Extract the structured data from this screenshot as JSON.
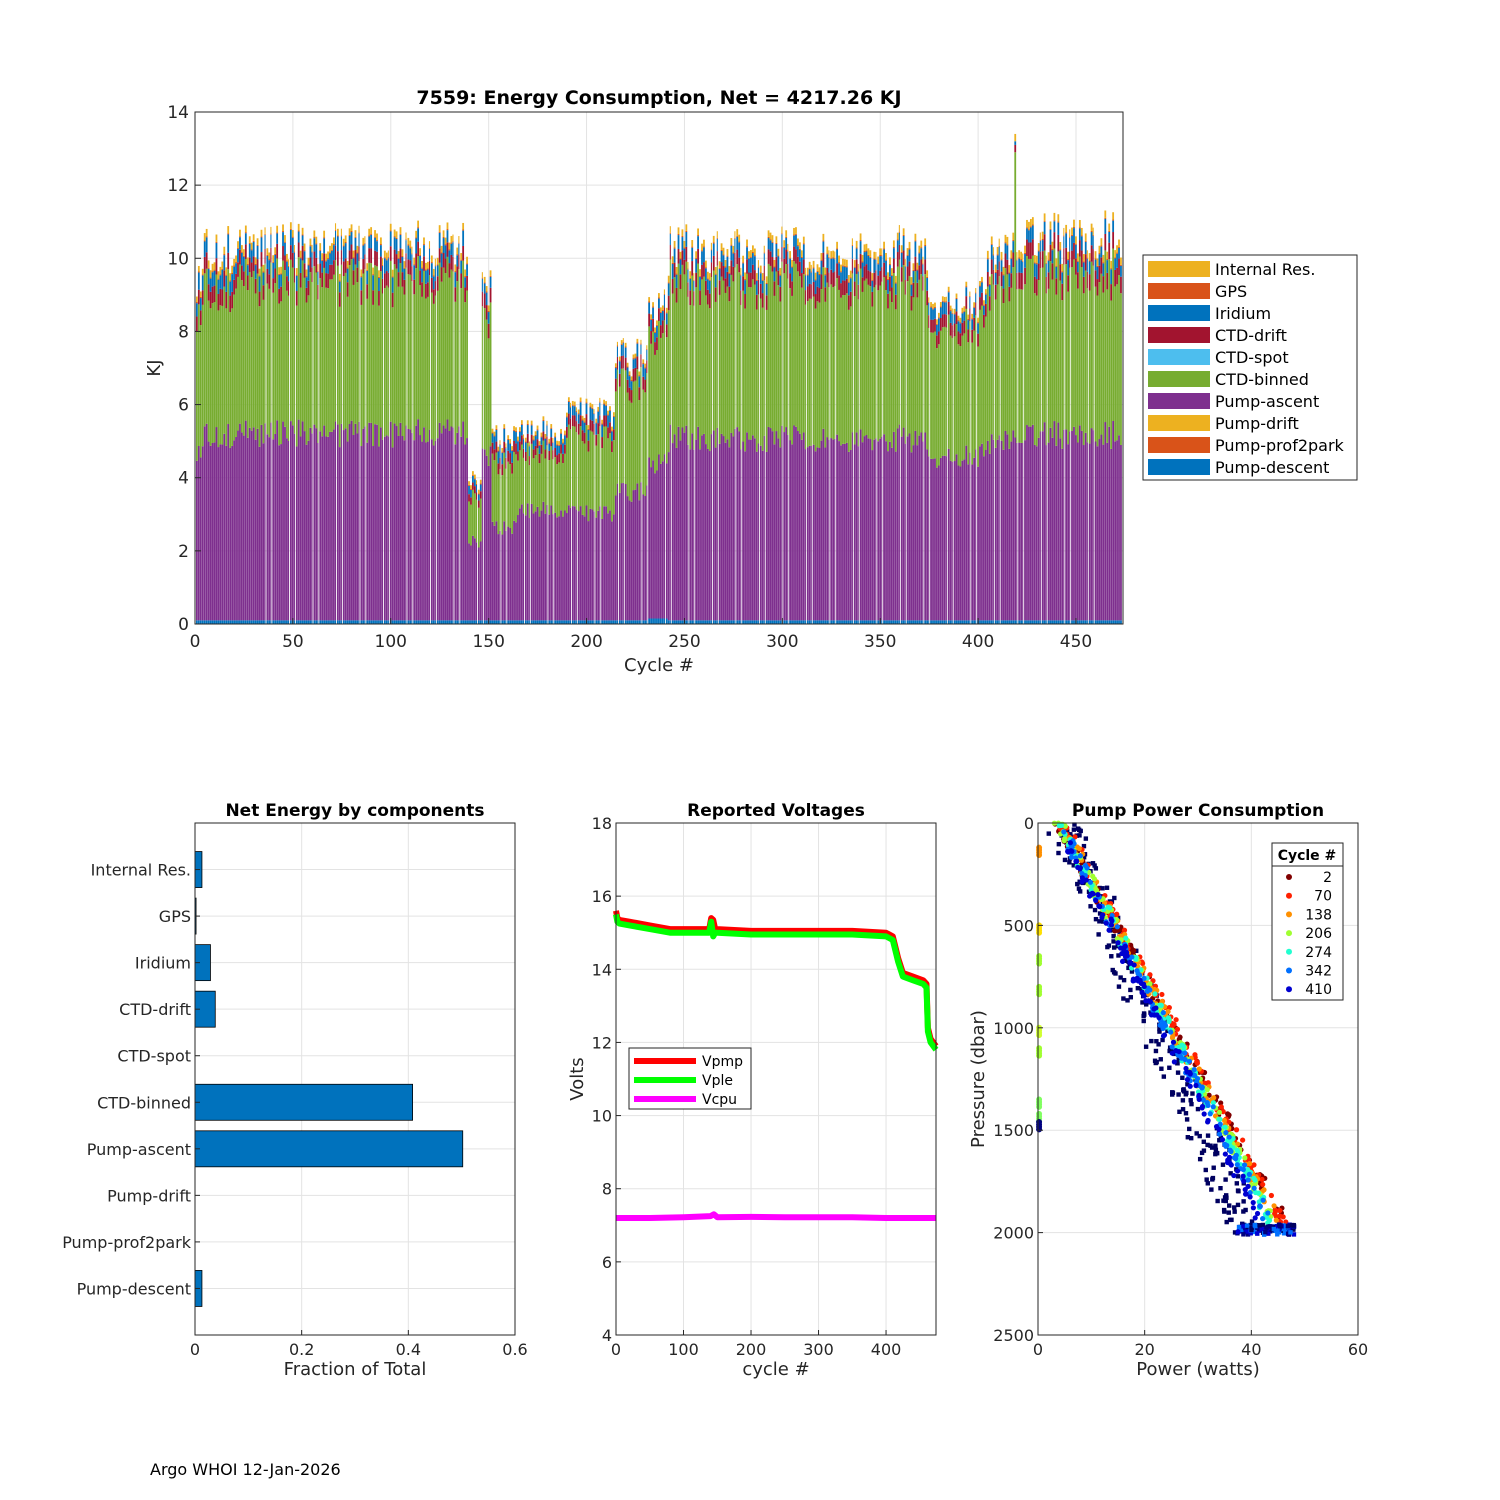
{
  "footer": "Argo WHOI 12-Jan-2026",
  "colors": {
    "internal_res": "#EDB120",
    "gps": "#D95319",
    "iridium": "#0072BD",
    "ctd_drift": "#A2142F",
    "ctd_spot": "#4DBEEE",
    "ctd_binned": "#77AC30",
    "pump_ascent": "#7E2F8E",
    "pump_drift": "#EDB120",
    "pump_prof2park": "#D95319",
    "pump_descent": "#0072BD",
    "vpmp": "#FF0000",
    "vple": "#00FF00",
    "vcpu": "#FF00FF"
  },
  "chart_data": [
    {
      "id": "energy",
      "type": "bar",
      "stacked": true,
      "title": "7559: Energy Consumption,  Net = 4217.26 KJ",
      "xlabel": "Cycle #",
      "ylabel": "KJ",
      "xlim": [
        0,
        474
      ],
      "ylim": [
        0,
        14
      ],
      "xticks": [
        "0",
        "50",
        "100",
        "150",
        "200",
        "250",
        "300",
        "350",
        "400",
        "450"
      ],
      "yticks": [
        "0",
        "2",
        "4",
        "6",
        "8",
        "10",
        "12",
        "14"
      ],
      "legend": [
        "Internal Res.",
        "GPS",
        "Iridium",
        "CTD-drift",
        "CTD-spot",
        "CTD-binned",
        "Pump-ascent",
        "Pump-drift",
        "Pump-prof2park",
        "Pump-descent"
      ],
      "legend_location": "east-outside",
      "segments": [
        {
          "from": 0,
          "to": 5,
          "descent": 0.1,
          "ascent": 4.8,
          "binned": 3.9,
          "drift": 0.4,
          "iridium": 0.4,
          "internal": 0.15
        },
        {
          "from": 5,
          "to": 20,
          "descent": 0.1,
          "ascent": 5.2,
          "binned": 4.1,
          "drift": 0.45,
          "iridium": 0.45,
          "internal": 0.2
        },
        {
          "from": 20,
          "to": 140,
          "descent": 0.1,
          "ascent": 5.25,
          "binned": 4.25,
          "drift": 0.4,
          "iridium": 0.35,
          "internal": 0.18
        },
        {
          "from": 140,
          "to": 147,
          "descent": 0.1,
          "ascent": 2.2,
          "binned": 1.2,
          "drift": 0.2,
          "iridium": 0.2,
          "internal": 0.1
        },
        {
          "from": 147,
          "to": 152,
          "descent": 0.1,
          "ascent": 4.6,
          "binned": 3.8,
          "drift": 0.4,
          "iridium": 0.3,
          "internal": 0.15
        },
        {
          "from": 152,
          "to": 165,
          "descent": 0.1,
          "ascent": 2.6,
          "binned": 1.8,
          "drift": 0.3,
          "iridium": 0.3,
          "internal": 0.1
        },
        {
          "from": 165,
          "to": 190,
          "descent": 0.1,
          "ascent": 3.1,
          "binned": 1.6,
          "drift": 0.25,
          "iridium": 0.25,
          "internal": 0.1
        },
        {
          "from": 190,
          "to": 215,
          "descent": 0.1,
          "ascent": 3.0,
          "binned": 2.1,
          "drift": 0.3,
          "iridium": 0.3,
          "internal": 0.1
        },
        {
          "from": 215,
          "to": 232,
          "descent": 0.1,
          "ascent": 3.6,
          "binned": 3.0,
          "drift": 0.35,
          "iridium": 0.3,
          "internal": 0.1
        },
        {
          "from": 232,
          "to": 242,
          "descent": 0.15,
          "ascent": 4.3,
          "binned": 3.5,
          "drift": 0.35,
          "iridium": 0.3,
          "internal": 0.12
        },
        {
          "from": 242,
          "to": 375,
          "descent": 0.1,
          "ascent": 5.1,
          "binned": 4.3,
          "drift": 0.4,
          "iridium": 0.35,
          "internal": 0.18
        },
        {
          "from": 375,
          "to": 405,
          "descent": 0.1,
          "ascent": 4.6,
          "binned": 3.6,
          "drift": 0.35,
          "iridium": 0.3,
          "internal": 0.12
        },
        {
          "from": 405,
          "to": 420,
          "descent": 0.1,
          "ascent": 5.0,
          "binned": 4.3,
          "drift": 0.4,
          "iridium": 0.35,
          "internal": 0.2
        },
        {
          "from": 420,
          "to": 474,
          "descent": 0.1,
          "ascent": 5.2,
          "binned": 4.5,
          "drift": 0.45,
          "iridium": 0.35,
          "internal": 0.2
        }
      ],
      "spike": {
        "cycle": 419,
        "total": 13.4
      }
    },
    {
      "id": "components",
      "type": "bar",
      "orientation": "horizontal",
      "title": "Net Energy by components",
      "xlabel": "Fraction of Total",
      "xlim": [
        0,
        0.6
      ],
      "xticks": [
        "0",
        "0.2",
        "0.4",
        "0.6"
      ],
      "categories": [
        "Internal Res.",
        "GPS",
        "Iridium",
        "CTD-drift",
        "CTD-spot",
        "CTD-binned",
        "Pump-ascent",
        "Pump-drift",
        "Pump-prof2park",
        "Pump-descent"
      ],
      "values": [
        0.013,
        0.002,
        0.029,
        0.038,
        0.0,
        0.408,
        0.502,
        0.0,
        0.0,
        0.013
      ]
    },
    {
      "id": "voltages",
      "type": "line",
      "title": "Reported Voltages",
      "xlabel": "cycle #",
      "ylabel": "Volts",
      "xlim": [
        0,
        474
      ],
      "ylim": [
        4,
        18
      ],
      "xticks": [
        "0",
        "100",
        "200",
        "300",
        "400"
      ],
      "yticks": [
        "4",
        "6",
        "8",
        "10",
        "12",
        "14",
        "16",
        "18"
      ],
      "legend_location": "west",
      "series": [
        {
          "name": "Vpmp",
          "x": [
            0,
            2,
            5,
            20,
            50,
            80,
            100,
            138,
            141,
            144,
            147,
            150,
            200,
            250,
            300,
            350,
            400,
            410,
            418,
            425,
            440,
            455,
            460,
            462,
            466,
            474
          ],
          "y": [
            15.6,
            15.4,
            15.35,
            15.3,
            15.2,
            15.1,
            15.1,
            15.1,
            15.4,
            15.35,
            15.1,
            15.1,
            15.05,
            15.05,
            15.05,
            15.05,
            15.0,
            14.9,
            14.3,
            13.9,
            13.8,
            13.7,
            13.6,
            12.4,
            12.1,
            11.9
          ]
        },
        {
          "name": "Vple",
          "x": [
            0,
            2,
            5,
            20,
            50,
            80,
            100,
            138,
            141,
            144,
            147,
            150,
            200,
            250,
            300,
            350,
            400,
            410,
            418,
            425,
            440,
            455,
            460,
            462,
            466,
            474
          ],
          "y": [
            15.5,
            15.3,
            15.25,
            15.2,
            15.1,
            15.0,
            15.0,
            15.0,
            15.3,
            14.9,
            15.0,
            15.0,
            14.95,
            14.95,
            14.95,
            14.95,
            14.9,
            14.8,
            14.2,
            13.8,
            13.7,
            13.6,
            13.5,
            12.3,
            12.0,
            11.8
          ]
        },
        {
          "name": "Vcpu",
          "x": [
            0,
            50,
            100,
            140,
            145,
            150,
            200,
            250,
            300,
            350,
            400,
            450,
            474
          ],
          "y": [
            7.2,
            7.2,
            7.22,
            7.25,
            7.3,
            7.22,
            7.23,
            7.22,
            7.22,
            7.22,
            7.2,
            7.2,
            7.2
          ]
        }
      ]
    },
    {
      "id": "pump_power",
      "type": "scatter",
      "title": "Pump Power Consumption",
      "xlabel": "Power (watts)",
      "ylabel": "Pressure (dbar)",
      "xlim": [
        0,
        60
      ],
      "ylim": [
        0,
        2500
      ],
      "y_reversed": true,
      "xticks": [
        "0",
        "20",
        "40",
        "60"
      ],
      "yticks": [
        "0",
        "500",
        "1000",
        "1500",
        "2000",
        "2500"
      ],
      "legend_title": "Cycle #",
      "legend_location": "top-right",
      "series": [
        {
          "name": "2",
          "color": "#800000",
          "p0": 3.5,
          "p2000": 47.5
        },
        {
          "name": "70",
          "color": "#FF2000",
          "p0": 4.5,
          "p2000": 47.0
        },
        {
          "name": "138",
          "color": "#FF9000",
          "p0": 4.2,
          "p2000": 46.0
        },
        {
          "name": "206",
          "color": "#A0FF30",
          "p0": 4.0,
          "p2000": 45.5
        },
        {
          "name": "274",
          "color": "#20FFD0",
          "p0": 4.0,
          "p2000": 45.0
        },
        {
          "name": "342",
          "color": "#0070FF",
          "p0": 3.8,
          "p2000": 44.5
        },
        {
          "name": "410",
          "color": "#0000D0",
          "p0": 3.5,
          "p2000": 43.0
        }
      ],
      "dark_series": {
        "color": "#000060",
        "p0": 3.0,
        "p2000": 38.0
      },
      "near_zero_points": [
        {
          "x": 0.2,
          "y": 120,
          "color": "#FF9000"
        },
        {
          "x": 0.2,
          "y": 500,
          "color": "#FFE000"
        },
        {
          "x": 0.2,
          "y": 650,
          "color": "#A0FF30"
        },
        {
          "x": 0.2,
          "y": 800,
          "color": "#A0FF30"
        },
        {
          "x": 0.2,
          "y": 1000,
          "color": "#D0FF30"
        },
        {
          "x": 0.2,
          "y": 1100,
          "color": "#A0FF30"
        },
        {
          "x": 0.2,
          "y": 1350,
          "color": "#80FF60"
        },
        {
          "x": 0.2,
          "y": 1420,
          "color": "#80FF60"
        },
        {
          "x": 0.2,
          "y": 1460,
          "color": "#000080"
        }
      ]
    }
  ]
}
